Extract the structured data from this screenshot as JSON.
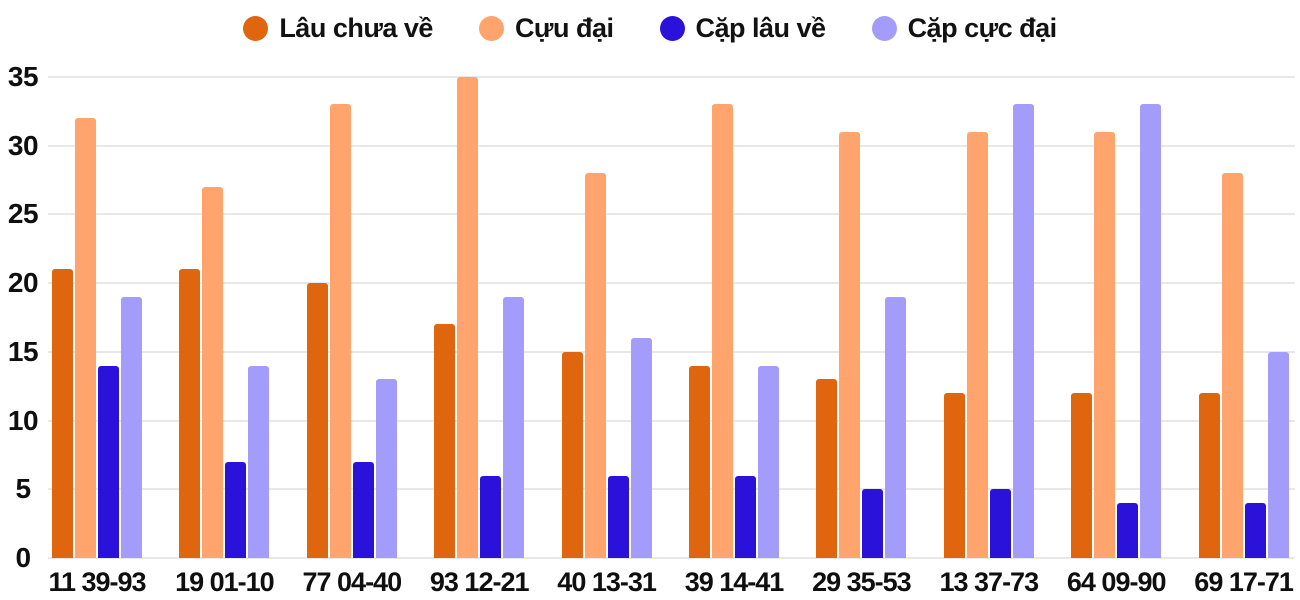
{
  "chart_data": {
    "type": "bar",
    "title": "",
    "xlabel": "",
    "ylabel": "",
    "categories": [
      "11 39-93",
      "19 01-10",
      "77 04-40",
      "93 12-21",
      "40 13-31",
      "39 14-41",
      "29 35-53",
      "13 37-73",
      "64 09-90",
      "69 17-71"
    ],
    "series": [
      {
        "name": "Lâu chưa về",
        "color": "#df650f",
        "values": [
          21,
          21,
          20,
          17,
          15,
          14,
          13,
          12,
          12,
          12
        ]
      },
      {
        "name": "Cựu đại",
        "color": "#ffa46d",
        "values": [
          32,
          27,
          33,
          35,
          28,
          33,
          31,
          31,
          31,
          28
        ]
      },
      {
        "name": "Cặp lâu về",
        "color": "#2a12da",
        "values": [
          14,
          7,
          7,
          6,
          6,
          6,
          5,
          5,
          4,
          4
        ]
      },
      {
        "name": "Cặp cực đại",
        "color": "#a49cfa",
        "values": [
          19,
          14,
          13,
          19,
          16,
          14,
          19,
          33,
          33,
          15
        ]
      }
    ],
    "ylim": [
      0,
      35
    ],
    "y_ticks": [
      0,
      5,
      10,
      15,
      20,
      25,
      30,
      35
    ],
    "grid": "horizontal",
    "legend_position": "top"
  },
  "colors": {
    "background": "#ffffff",
    "gridline": "#e8e8e8",
    "text": "#0f0f0f"
  }
}
